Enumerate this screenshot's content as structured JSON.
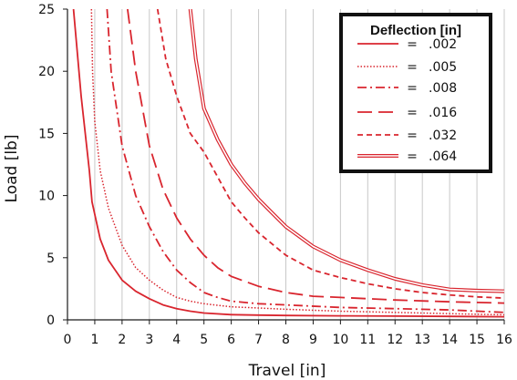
{
  "colors": {
    "series": "#d9252e",
    "grid": "#c8c8c8",
    "axis": "#1a1a1a",
    "legend_border": "#111111"
  },
  "chart_data": {
    "type": "line",
    "title": "",
    "xlabel": "Travel [in]",
    "ylabel": "Load [lb]",
    "xlim": [
      0,
      16
    ],
    "ylim": [
      0,
      25
    ],
    "xticks": [
      0,
      1,
      2,
      3,
      4,
      5,
      6,
      7,
      8,
      9,
      10,
      11,
      12,
      13,
      14,
      15,
      16
    ],
    "yticks": [
      0,
      5,
      10,
      15,
      20,
      25
    ],
    "grid": "vertical",
    "legend": {
      "title": "Deflection [in]",
      "placement": "top-right",
      "entries": [
        {
          "prefix": "=",
          "label": ".002",
          "line_style": "solid"
        },
        {
          "prefix": "=",
          "label": ".005",
          "line_style": "dotted"
        },
        {
          "prefix": "=",
          "label": ".008",
          "line_style": "dash-dot"
        },
        {
          "prefix": "=",
          "label": ".016",
          "line_style": "long-dash"
        },
        {
          "prefix": "=",
          "label": ".032",
          "line_style": "short-dash"
        },
        {
          "prefix": "=",
          "label": ".064",
          "line_style": "double"
        }
      ]
    },
    "series": [
      {
        "name": ".002",
        "line_style": "solid",
        "points": [
          [
            0.22,
            25
          ],
          [
            0.5,
            18
          ],
          [
            0.8,
            12
          ],
          [
            0.9,
            9.5
          ],
          [
            1.0,
            8.5
          ],
          [
            1.2,
            6.5
          ],
          [
            1.5,
            4.8
          ],
          [
            2.0,
            3.2
          ],
          [
            2.5,
            2.3
          ],
          [
            3.0,
            1.7
          ],
          [
            3.5,
            1.2
          ],
          [
            4.0,
            0.9
          ],
          [
            4.5,
            0.7
          ],
          [
            5.0,
            0.55
          ],
          [
            6.0,
            0.42
          ],
          [
            7.0,
            0.38
          ],
          [
            8.0,
            0.35
          ],
          [
            10.0,
            0.32
          ],
          [
            12.0,
            0.3
          ],
          [
            14.0,
            0.28
          ],
          [
            16.0,
            0.25
          ]
        ]
      },
      {
        "name": ".005",
        "line_style": "dotted",
        "points": [
          [
            0.88,
            25
          ],
          [
            0.92,
            20
          ],
          [
            1.0,
            16
          ],
          [
            1.2,
            12
          ],
          [
            1.5,
            9
          ],
          [
            2.0,
            6
          ],
          [
            2.5,
            4.2
          ],
          [
            3.0,
            3.2
          ],
          [
            3.5,
            2.4
          ],
          [
            4.0,
            1.8
          ],
          [
            4.5,
            1.5
          ],
          [
            5.0,
            1.3
          ],
          [
            6.0,
            1.05
          ],
          [
            7.0,
            0.95
          ],
          [
            8.0,
            0.85
          ],
          [
            10.0,
            0.7
          ],
          [
            12.0,
            0.6
          ],
          [
            14.0,
            0.5
          ],
          [
            16.0,
            0.4
          ]
        ]
      },
      {
        "name": ".008",
        "line_style": "dash-dot",
        "points": [
          [
            1.45,
            25
          ],
          [
            1.6,
            20
          ],
          [
            2.0,
            14
          ],
          [
            2.5,
            10
          ],
          [
            3.0,
            7.5
          ],
          [
            3.5,
            5.5
          ],
          [
            4.0,
            4.0
          ],
          [
            4.5,
            3.0
          ],
          [
            5.0,
            2.2
          ],
          [
            5.5,
            1.8
          ],
          [
            6.0,
            1.5
          ],
          [
            7.0,
            1.3
          ],
          [
            8.0,
            1.2
          ],
          [
            10.0,
            1.0
          ],
          [
            12.0,
            0.9
          ],
          [
            14.0,
            0.8
          ],
          [
            16.0,
            0.6
          ]
        ]
      },
      {
        "name": ".016",
        "line_style": "long-dash",
        "points": [
          [
            2.2,
            25
          ],
          [
            2.5,
            20
          ],
          [
            3.0,
            14
          ],
          [
            3.5,
            10.5
          ],
          [
            4.0,
            8.2
          ],
          [
            4.5,
            6.5
          ],
          [
            5.0,
            5.2
          ],
          [
            5.5,
            4.2
          ],
          [
            6.0,
            3.5
          ],
          [
            7.0,
            2.7
          ],
          [
            8.0,
            2.2
          ],
          [
            9.0,
            1.9
          ],
          [
            10.0,
            1.8
          ],
          [
            12.0,
            1.6
          ],
          [
            14.0,
            1.45
          ],
          [
            16.0,
            1.35
          ]
        ]
      },
      {
        "name": ".032",
        "line_style": "short-dash",
        "points": [
          [
            3.3,
            25
          ],
          [
            3.6,
            21
          ],
          [
            4.0,
            18
          ],
          [
            4.5,
            15
          ],
          [
            5.0,
            13.5
          ],
          [
            5.5,
            11.5
          ],
          [
            6.0,
            9.5
          ],
          [
            6.5,
            8.2
          ],
          [
            7.0,
            7.0
          ],
          [
            8.0,
            5.2
          ],
          [
            9.0,
            4.0
          ],
          [
            10.0,
            3.4
          ],
          [
            11.0,
            2.9
          ],
          [
            12.0,
            2.5
          ],
          [
            13.0,
            2.2
          ],
          [
            14.0,
            2.0
          ],
          [
            15.0,
            1.85
          ],
          [
            16.0,
            1.75
          ]
        ]
      },
      {
        "name": ".064",
        "line_style": "double",
        "points": [
          [
            4.5,
            25
          ],
          [
            4.7,
            21
          ],
          [
            5.0,
            17
          ],
          [
            5.5,
            14.5
          ],
          [
            6.0,
            12.5
          ],
          [
            6.5,
            11
          ],
          [
            7.0,
            9.7
          ],
          [
            7.5,
            8.6
          ],
          [
            8.0,
            7.5
          ],
          [
            9.0,
            5.9
          ],
          [
            10.0,
            4.8
          ],
          [
            11.0,
            4.0
          ],
          [
            12.0,
            3.3
          ],
          [
            13.0,
            2.8
          ],
          [
            14.0,
            2.45
          ],
          [
            15.0,
            2.35
          ],
          [
            16.0,
            2.3
          ]
        ]
      }
    ]
  }
}
